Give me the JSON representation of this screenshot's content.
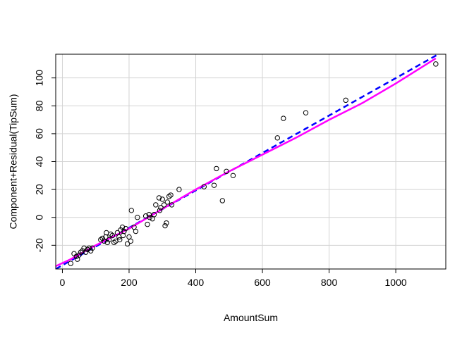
{
  "chart_data": {
    "type": "scatter",
    "title": "",
    "xlabel": "AmountSum",
    "ylabel": "Component+Residual(TipSum)",
    "xlim": [
      -20,
      1150
    ],
    "ylim": [
      -37,
      117
    ],
    "xticks": [
      0,
      200,
      400,
      600,
      800,
      1000
    ],
    "yticks": [
      -20,
      0,
      20,
      40,
      60,
      80,
      100
    ],
    "xtick_labels": [
      "0",
      "200",
      "400",
      "600",
      "800",
      "1000"
    ],
    "ytick_labels": [
      "-20",
      "0",
      "20",
      "40",
      "60",
      "80",
      "100"
    ],
    "grid": true,
    "points": [
      {
        "x": 25,
        "y": -33
      },
      {
        "x": 35,
        "y": -26
      },
      {
        "x": 42,
        "y": -28
      },
      {
        "x": 45,
        "y": -30
      },
      {
        "x": 50,
        "y": -27
      },
      {
        "x": 55,
        "y": -25
      },
      {
        "x": 60,
        "y": -24
      },
      {
        "x": 65,
        "y": -22
      },
      {
        "x": 70,
        "y": -25
      },
      {
        "x": 75,
        "y": -23
      },
      {
        "x": 80,
        "y": -22
      },
      {
        "x": 85,
        "y": -24
      },
      {
        "x": 90,
        "y": -22
      },
      {
        "x": 115,
        "y": -16
      },
      {
        "x": 120,
        "y": -15
      },
      {
        "x": 125,
        "y": -17
      },
      {
        "x": 130,
        "y": -14
      },
      {
        "x": 132,
        "y": -11
      },
      {
        "x": 135,
        "y": -18
      },
      {
        "x": 140,
        "y": -16
      },
      {
        "x": 145,
        "y": -12
      },
      {
        "x": 150,
        "y": -13
      },
      {
        "x": 155,
        "y": -18
      },
      {
        "x": 160,
        "y": -17
      },
      {
        "x": 165,
        "y": -11
      },
      {
        "x": 170,
        "y": -14
      },
      {
        "x": 172,
        "y": -16
      },
      {
        "x": 175,
        "y": -9
      },
      {
        "x": 180,
        "y": -7
      },
      {
        "x": 182,
        "y": -13
      },
      {
        "x": 185,
        "y": -10
      },
      {
        "x": 190,
        "y": -8
      },
      {
        "x": 195,
        "y": -19
      },
      {
        "x": 200,
        "y": -14
      },
      {
        "x": 205,
        "y": -17
      },
      {
        "x": 207,
        "y": 5
      },
      {
        "x": 215,
        "y": -7
      },
      {
        "x": 220,
        "y": -10
      },
      {
        "x": 225,
        "y": 0
      },
      {
        "x": 250,
        "y": 1
      },
      {
        "x": 255,
        "y": -5
      },
      {
        "x": 260,
        "y": 2
      },
      {
        "x": 262,
        "y": 0
      },
      {
        "x": 270,
        "y": -1
      },
      {
        "x": 275,
        "y": 2
      },
      {
        "x": 280,
        "y": 9
      },
      {
        "x": 290,
        "y": 14
      },
      {
        "x": 292,
        "y": 5
      },
      {
        "x": 295,
        "y": 7
      },
      {
        "x": 300,
        "y": 13
      },
      {
        "x": 305,
        "y": 9
      },
      {
        "x": 308,
        "y": -6
      },
      {
        "x": 312,
        "y": -4
      },
      {
        "x": 315,
        "y": 11
      },
      {
        "x": 320,
        "y": 15
      },
      {
        "x": 325,
        "y": 16
      },
      {
        "x": 328,
        "y": 9
      },
      {
        "x": 350,
        "y": 20
      },
      {
        "x": 425,
        "y": 22
      },
      {
        "x": 455,
        "y": 23
      },
      {
        "x": 462,
        "y": 35
      },
      {
        "x": 480,
        "y": 12
      },
      {
        "x": 492,
        "y": 33
      },
      {
        "x": 512,
        "y": 30
      },
      {
        "x": 645,
        "y": 57
      },
      {
        "x": 663,
        "y": 71
      },
      {
        "x": 730,
        "y": 75
      },
      {
        "x": 850,
        "y": 84
      },
      {
        "x": 1120,
        "y": 110
      }
    ],
    "fit_line": {
      "x": [
        -20,
        1150
      ],
      "y": [
        -37,
        120
      ]
    },
    "smooth_line": {
      "x": [
        -20,
        25,
        100,
        200,
        300,
        400,
        500,
        600,
        700,
        800,
        900,
        1000,
        1120
      ],
      "y": [
        -35,
        -30,
        -20,
        -8,
        6,
        20,
        33,
        45,
        57,
        70,
        82,
        96,
        114
      ]
    },
    "colors": {
      "fit_line": "#0000ff",
      "smooth_line": "#ff00ff",
      "points": "#000000",
      "grid": "#d3d3d3"
    }
  }
}
